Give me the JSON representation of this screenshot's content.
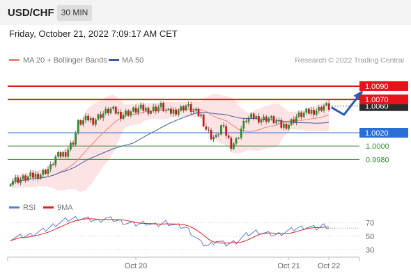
{
  "header": {
    "symbol": "USD/CHF",
    "timeframe": "30 MIN",
    "datetime": "Friday, October 21, 2022 7:09:17 AM CET"
  },
  "legend": {
    "ma20_label": "MA 20 + Bollinger Bands",
    "ma50_label": "MA 50",
    "credit": "Research © 2022 Trading Central",
    "colors": {
      "ma20": "#f08080",
      "ma50": "#3a5fa0"
    }
  },
  "rsi_legend": {
    "rsi_label": "RSI",
    "ma_label": "9MA",
    "colors": {
      "rsi": "#5b7fd6",
      "ma": "#e02020"
    }
  },
  "chart_data": [
    {
      "type": "candlestick",
      "ylim": [
        0.9925,
        1.0115
      ],
      "x_ticks": [
        {
          "label": "Oct 20",
          "index": 50
        },
        {
          "label": "Oct 21",
          "index": 111
        },
        {
          "label": "Oct 22",
          "index": 127
        }
      ],
      "current_price": {
        "label": "1.0060",
        "value": 1.006
      },
      "levels": [
        {
          "label": "1.0090",
          "value": 1.009,
          "kind": "resistance",
          "color": "#e8121a"
        },
        {
          "label": "1.0070",
          "value": 1.007,
          "kind": "resistance",
          "color": "#e8121a"
        },
        {
          "label": "1.0020",
          "value": 1.002,
          "kind": "pivot",
          "color": "#2a6fd6"
        },
        {
          "label": "1.0000",
          "value": 1.0,
          "kind": "support",
          "color": "#3c8a3c"
        },
        {
          "label": "0.9980",
          "value": 0.998,
          "kind": "support",
          "color": "#3c8a3c"
        }
      ],
      "candle_colors": {
        "up": "#2e8b2e",
        "down": "#c81e1e"
      },
      "projection": [
        {
          "index": 128,
          "value": 1.0058
        },
        {
          "index": 133,
          "value": 1.0047
        },
        {
          "index": 140,
          "value": 1.0081
        }
      ],
      "close_anchors": [
        [
          0,
          0.9948
        ],
        [
          5,
          0.9951
        ],
        [
          12,
          0.9958
        ],
        [
          16,
          0.9968
        ],
        [
          18,
          0.9983
        ],
        [
          22,
          0.999
        ],
        [
          25,
          1.0007
        ],
        [
          27,
          1.0034
        ],
        [
          31,
          1.0041
        ],
        [
          33,
          1.0038
        ],
        [
          36,
          1.0047
        ],
        [
          40,
          1.0055
        ],
        [
          44,
          1.0047
        ],
        [
          48,
          1.0052
        ],
        [
          52,
          1.0056
        ],
        [
          56,
          1.0054
        ],
        [
          60,
          1.006
        ],
        [
          63,
          1.005
        ],
        [
          65,
          1.0052
        ],
        [
          68,
          1.0056
        ],
        [
          70,
          1.0061
        ],
        [
          73,
          1.0052
        ],
        [
          76,
          1.0045
        ],
        [
          78,
          1.0026
        ],
        [
          80,
          1.0015
        ],
        [
          82,
          1.0012
        ],
        [
          84,
          1.003
        ],
        [
          86,
          1.0018
        ],
        [
          88,
          1.0002
        ],
        [
          90,
          1.0008
        ],
        [
          92,
          1.0026
        ],
        [
          94,
          1.004
        ],
        [
          97,
          1.0044
        ],
        [
          100,
          1.004
        ],
        [
          103,
          1.0042
        ],
        [
          106,
          1.0036
        ],
        [
          108,
          1.003
        ],
        [
          111,
          1.0033
        ],
        [
          114,
          1.0044
        ],
        [
          117,
          1.0049
        ],
        [
          120,
          1.0052
        ],
        [
          123,
          1.0055
        ],
        [
          125,
          1.0061
        ],
        [
          127,
          1.0058
        ]
      ]
    },
    {
      "type": "line",
      "ylim": [
        20,
        80
      ],
      "y_ticks": [
        {
          "label": "70",
          "value": 70
        },
        {
          "label": "50",
          "value": 50
        },
        {
          "label": "30",
          "value": 30
        }
      ],
      "reference_lines": [
        70,
        50,
        30
      ],
      "rsi_anchors": [
        [
          0,
          47
        ],
        [
          8,
          52
        ],
        [
          14,
          60
        ],
        [
          18,
          68
        ],
        [
          22,
          74
        ],
        [
          26,
          77
        ],
        [
          30,
          76
        ],
        [
          35,
          73
        ],
        [
          38,
          77
        ],
        [
          42,
          74
        ],
        [
          46,
          70
        ],
        [
          50,
          68
        ],
        [
          54,
          70
        ],
        [
          58,
          66
        ],
        [
          62,
          71
        ],
        [
          66,
          66
        ],
        [
          70,
          63
        ],
        [
          73,
          52
        ],
        [
          76,
          40
        ],
        [
          79,
          36
        ],
        [
          82,
          44
        ],
        [
          86,
          38
        ],
        [
          90,
          42
        ],
        [
          94,
          52
        ],
        [
          98,
          57
        ],
        [
          102,
          54
        ],
        [
          106,
          52
        ],
        [
          110,
          57
        ],
        [
          114,
          62
        ],
        [
          118,
          64
        ],
        [
          122,
          62
        ],
        [
          125,
          66
        ],
        [
          127,
          64
        ]
      ]
    }
  ]
}
